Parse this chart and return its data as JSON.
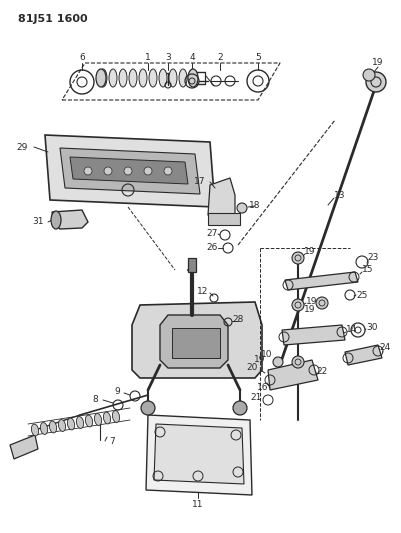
{
  "title": "81J51 1600",
  "bg_color": "#ffffff",
  "line_color": "#2a2a2a",
  "figsize": [
    4.02,
    5.33
  ],
  "dpi": 100
}
